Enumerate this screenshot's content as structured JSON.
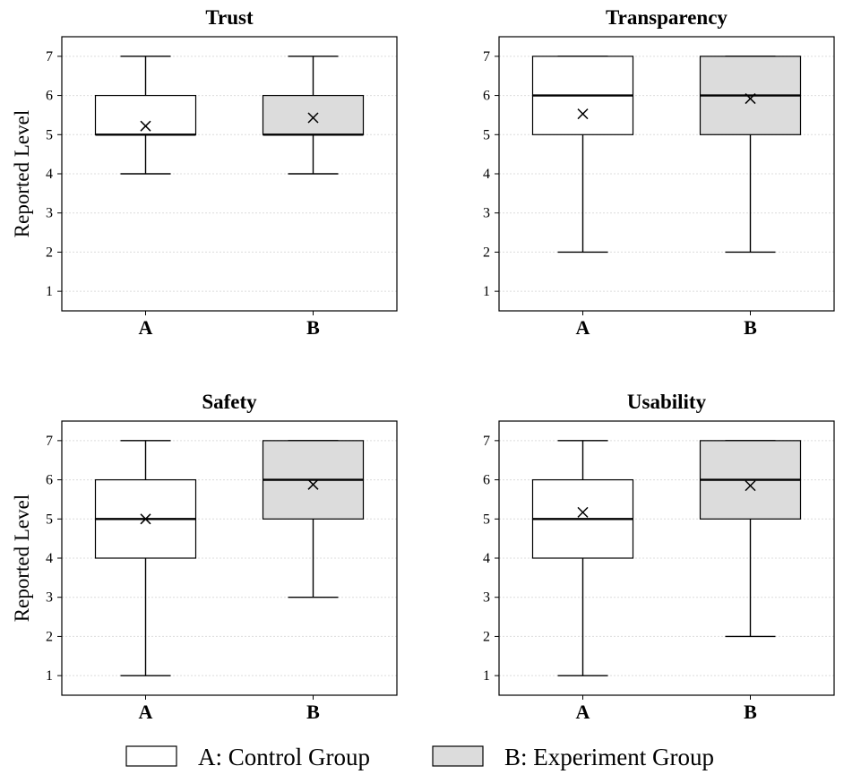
{
  "colors": {
    "group_a_fill": "#ffffff",
    "group_b_fill": "#dcdcdc",
    "stroke": "#000000",
    "grid": "#dcdcdc"
  },
  "legend": {
    "items": [
      {
        "label": "A: Control Group",
        "color": "#ffffff"
      },
      {
        "label": "B: Experiment Group",
        "color": "#dcdcdc"
      }
    ]
  },
  "chart_data": [
    {
      "type": "box",
      "title": "Trust",
      "ylabel": "Reported Level",
      "ylim": [
        0.5,
        7.5
      ],
      "yticks": [
        1,
        2,
        3,
        4,
        5,
        6,
        7
      ],
      "grid": true,
      "categories": [
        "A",
        "B"
      ],
      "boxes": [
        {
          "group": "A",
          "min": 4,
          "q1": 5,
          "median": 5,
          "q3": 6,
          "max": 7,
          "mean": 5.22
        },
        {
          "group": "B",
          "min": 4,
          "q1": 5,
          "median": 5,
          "q3": 6,
          "max": 7,
          "mean": 5.43
        }
      ]
    },
    {
      "type": "box",
      "title": "Transparency",
      "ylabel": "",
      "ylim": [
        0.5,
        7.5
      ],
      "yticks": [
        1,
        2,
        3,
        4,
        5,
        6,
        7
      ],
      "grid": true,
      "categories": [
        "A",
        "B"
      ],
      "boxes": [
        {
          "group": "A",
          "min": 2,
          "q1": 5,
          "median": 6,
          "q3": 7,
          "max": 7,
          "mean": 5.53
        },
        {
          "group": "B",
          "min": 2,
          "q1": 5,
          "median": 6,
          "q3": 7,
          "max": 7,
          "mean": 5.92
        }
      ]
    },
    {
      "type": "box",
      "title": "Safety",
      "ylabel": "Reported Level",
      "ylim": [
        0.5,
        7.5
      ],
      "yticks": [
        1,
        2,
        3,
        4,
        5,
        6,
        7
      ],
      "grid": true,
      "categories": [
        "A",
        "B"
      ],
      "boxes": [
        {
          "group": "A",
          "min": 1,
          "q1": 4,
          "median": 5,
          "q3": 6,
          "max": 7,
          "mean": 5.0
        },
        {
          "group": "B",
          "min": 3,
          "q1": 5,
          "median": 6,
          "q3": 7,
          "max": 7,
          "mean": 5.88
        }
      ]
    },
    {
      "type": "box",
      "title": "Usability",
      "ylabel": "",
      "ylim": [
        0.5,
        7.5
      ],
      "yticks": [
        1,
        2,
        3,
        4,
        5,
        6,
        7
      ],
      "grid": true,
      "categories": [
        "A",
        "B"
      ],
      "boxes": [
        {
          "group": "A",
          "min": 1,
          "q1": 4,
          "median": 5,
          "q3": 6,
          "max": 7,
          "mean": 5.17
        },
        {
          "group": "B",
          "min": 2,
          "q1": 5,
          "median": 6,
          "q3": 7,
          "max": 7,
          "mean": 5.85
        }
      ]
    }
  ]
}
